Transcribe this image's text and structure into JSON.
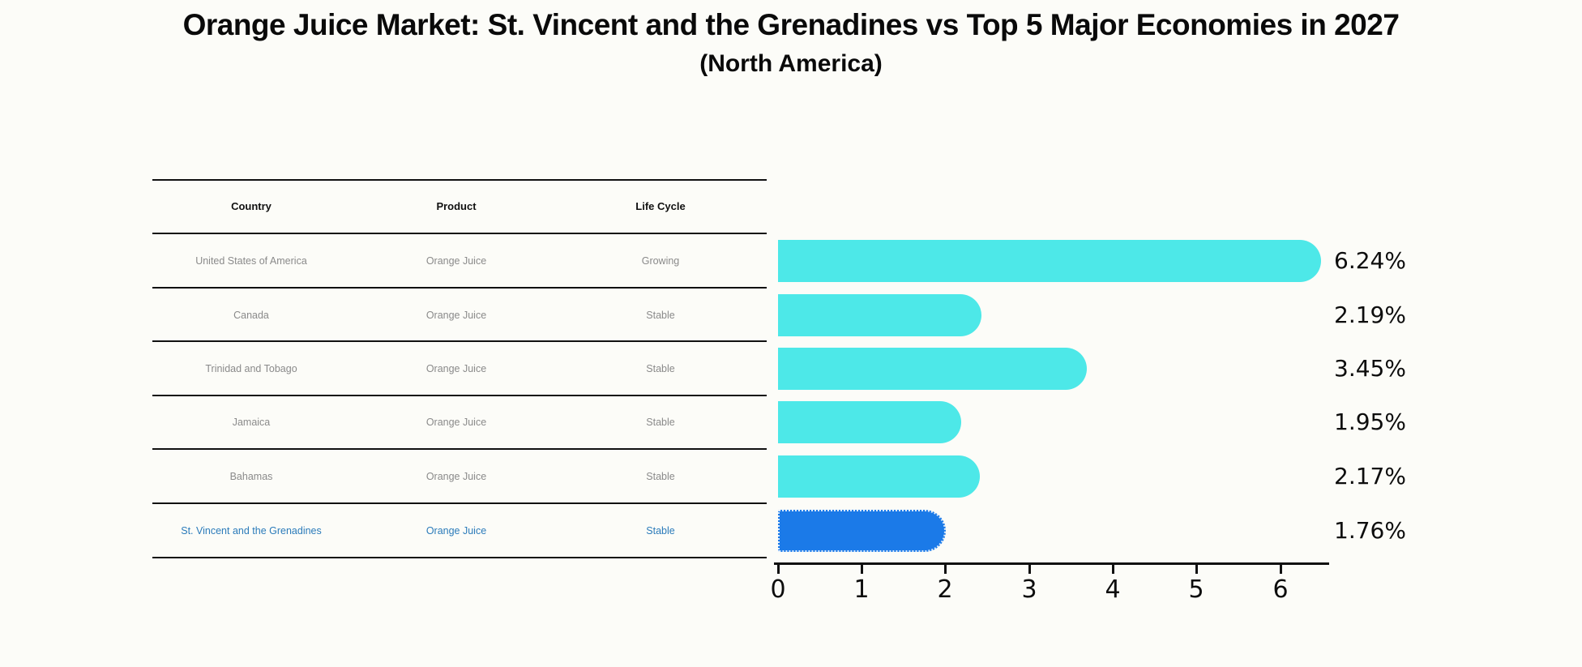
{
  "page": {
    "title": "Orange Juice Market: St. Vincent and the Grenadines vs Top 5 Major Economies in 2027",
    "subtitle": "(North America)"
  },
  "colors": {
    "bar": "#4de8e8",
    "highlight_bar": "#1b7ae8",
    "highlight_text": "#2b7bba",
    "row_text": "#8a8a8a",
    "header_text": "#111111",
    "axis": "#111111",
    "background": "#fcfcf8"
  },
  "table": {
    "headers": [
      "Country",
      "Product",
      "Life Cycle"
    ],
    "rows": [
      {
        "country": "United States of America",
        "product": "Orange Juice",
        "life_cycle": "Growing",
        "highlight": false
      },
      {
        "country": "Canada",
        "product": "Orange Juice",
        "life_cycle": "Stable",
        "highlight": false
      },
      {
        "country": "Trinidad and Tobago",
        "product": "Orange Juice",
        "life_cycle": "Stable",
        "highlight": false
      },
      {
        "country": "Jamaica",
        "product": "Orange Juice",
        "life_cycle": "Stable",
        "highlight": false
      },
      {
        "country": "Bahamas",
        "product": "Orange Juice",
        "life_cycle": "Stable",
        "highlight": false
      },
      {
        "country": "St. Vincent and the Grenadines",
        "product": "Orange Juice",
        "life_cycle": "Stable",
        "highlight": true
      }
    ]
  },
  "chart_data": {
    "type": "bar",
    "orientation": "horizontal",
    "title": "Orange Juice Market: St. Vincent and the Grenadines vs Top 5 Major Economies in 2027 (North America)",
    "categories": [
      "United States of America",
      "Canada",
      "Trinidad and Tobago",
      "Jamaica",
      "Bahamas",
      "St. Vincent and the Grenadines"
    ],
    "values": [
      6.24,
      2.19,
      3.45,
      1.95,
      2.17,
      1.76
    ],
    "value_labels": [
      "6.24%",
      "2.19%",
      "3.45%",
      "1.95%",
      "2.17%",
      "1.76%"
    ],
    "xticks": [
      "0",
      "1",
      "2",
      "3",
      "4",
      "5",
      "6"
    ],
    "xlim": [
      0,
      6.58
    ],
    "xlabel": "",
    "ylabel": "",
    "grid": false,
    "legend": false,
    "highlight_index": 5
  }
}
